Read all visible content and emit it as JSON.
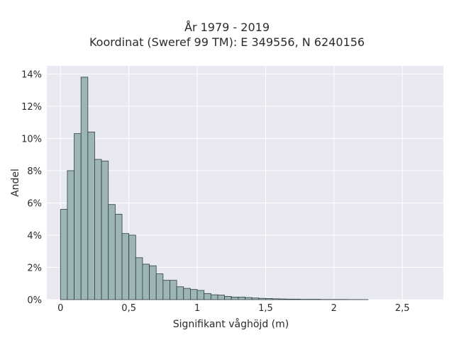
{
  "chart_data": {
    "type": "bar",
    "title": "År 1979 - 2019",
    "subtitle": "Koordinat (Sweref 99 TM): E 349556, N 6240156",
    "xlabel": "Signifikant våghöjd (m)",
    "ylabel": "Andel",
    "xlim": [
      -0.1,
      2.8
    ],
    "ylim": [
      0,
      0.145
    ],
    "x_ticks": [
      0,
      0.5,
      1,
      1.5,
      2,
      2.5
    ],
    "x_tick_labels": [
      "0",
      "0,5",
      "1",
      "1,5",
      "2",
      "2,5"
    ],
    "y_ticks": [
      0,
      0.02,
      0.04,
      0.06,
      0.08,
      0.1,
      0.12,
      0.14
    ],
    "y_tick_labels": [
      "0%",
      "2%",
      "4%",
      "6%",
      "8%",
      "10%",
      "12%",
      "14%"
    ],
    "bin_start": 0.0,
    "bin_width": 0.05,
    "values": [
      0.056,
      0.08,
      0.103,
      0.138,
      0.104,
      0.087,
      0.086,
      0.059,
      0.053,
      0.041,
      0.04,
      0.026,
      0.022,
      0.021,
      0.016,
      0.012,
      0.012,
      0.008,
      0.007,
      0.0063,
      0.0057,
      0.0038,
      0.003,
      0.0028,
      0.002,
      0.0016,
      0.0016,
      0.0013,
      0.001,
      0.0008,
      0.0007,
      0.0005,
      0.0004,
      0.0003,
      0.0003,
      0.0002,
      0.0002,
      0.0002,
      0.0001,
      0.0001,
      0.0001,
      0.0001,
      5e-05,
      5e-05,
      3e-05
    ],
    "grid": true,
    "colors": {
      "bar_fill": "#9db5b5",
      "bar_edge": "#2f3f3f",
      "plot_bg": "#e9e9f1",
      "grid": "#ffffff"
    }
  }
}
